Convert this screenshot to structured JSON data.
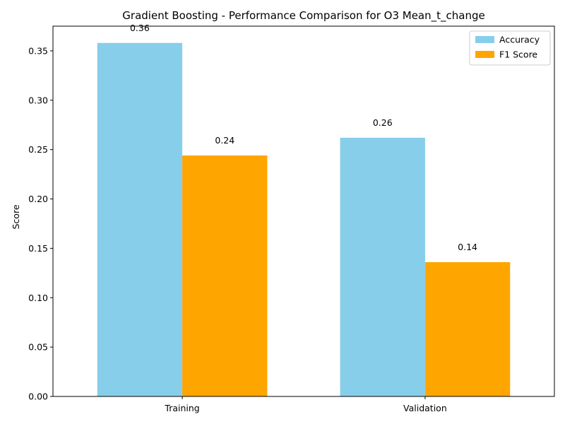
{
  "chart_data": {
    "type": "bar",
    "title": "Gradient Boosting - Performance Comparison for O3 Mean_t_change",
    "xlabel": "",
    "ylabel": "Score",
    "categories": [
      "Training",
      "Validation"
    ],
    "series": [
      {
        "name": "Accuracy",
        "color": "#87ceeb",
        "values": [
          0.358,
          0.262
        ],
        "labels": [
          "0.36",
          "0.26"
        ]
      },
      {
        "name": "F1 Score",
        "color": "#ffa500",
        "values": [
          0.244,
          0.136
        ],
        "labels": [
          "0.24",
          "0.14"
        ]
      }
    ],
    "ylim": [
      0,
      0.375
    ],
    "yticks": [
      0.0,
      0.05,
      0.1,
      0.15,
      0.2,
      0.25,
      0.3,
      0.35
    ],
    "ytick_labels": [
      "0.00",
      "0.05",
      "0.10",
      "0.15",
      "0.20",
      "0.25",
      "0.30",
      "0.35"
    ],
    "grid": false,
    "legend_position": "top-right"
  }
}
